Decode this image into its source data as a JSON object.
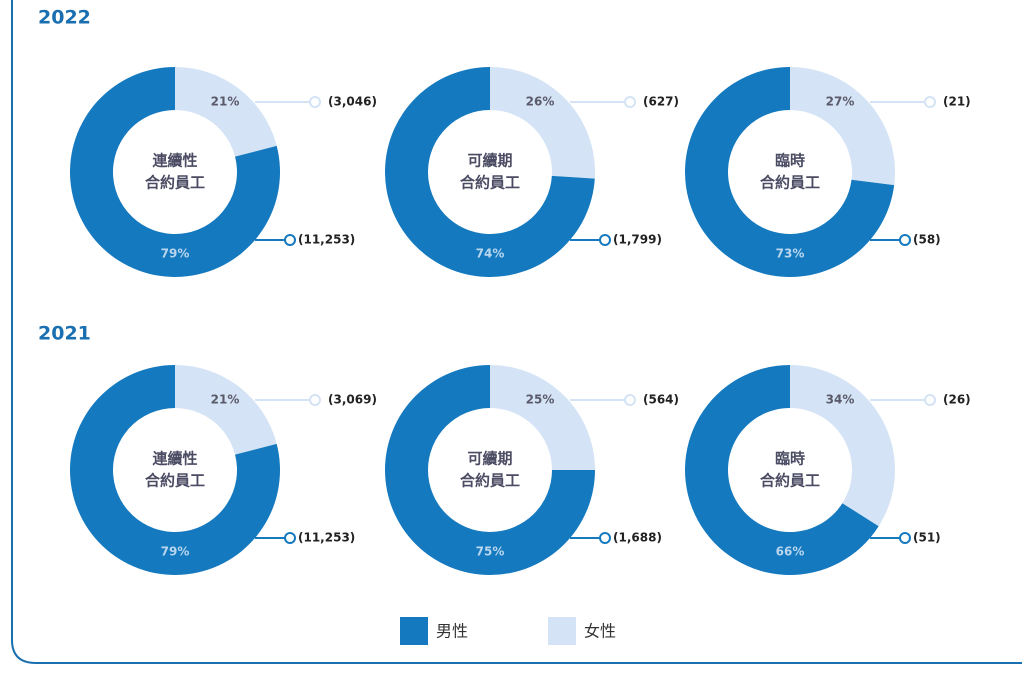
{
  "legend": {
    "categories": [
      "男性",
      "女性"
    ],
    "colors": [
      "#1479be",
      "#d4e3f5"
    ]
  },
  "chart_data": [
    {
      "type": "donut",
      "title": "2022",
      "pies": [
        {
          "label": [
            "連續性",
            "合約員工"
          ],
          "values": [
            79,
            21
          ],
          "value_labels": [
            "79%",
            "21%"
          ],
          "counts": [
            11253,
            3046
          ],
          "count_labels": [
            "(11,253)",
            "(3,046)"
          ]
        },
        {
          "label": [
            "可續期",
            "合約員工"
          ],
          "values": [
            74,
            26
          ],
          "value_labels": [
            "74%",
            "26%"
          ],
          "counts": [
            1799,
            627
          ],
          "count_labels": [
            "(1,799)",
            "(627)"
          ]
        },
        {
          "label": [
            "臨時",
            "合約員工"
          ],
          "values": [
            73,
            27
          ],
          "value_labels": [
            "73%",
            "27%"
          ],
          "counts": [
            58,
            21
          ],
          "count_labels": [
            "(58)",
            "(21)"
          ]
        }
      ]
    },
    {
      "type": "donut",
      "title": "2021",
      "pies": [
        {
          "label": [
            "連續性",
            "合約員工"
          ],
          "values": [
            79,
            21
          ],
          "value_labels": [
            "79%",
            "21%"
          ],
          "counts": [
            11253,
            3069
          ],
          "count_labels": [
            "(11,253)",
            "(3,069)"
          ]
        },
        {
          "label": [
            "可續期",
            "合約員工"
          ],
          "values": [
            75,
            25
          ],
          "value_labels": [
            "75%",
            "25%"
          ],
          "counts": [
            1688,
            564
          ],
          "count_labels": [
            "(1,688)",
            "(564)"
          ]
        },
        {
          "label": [
            "臨時",
            "合約員工"
          ],
          "values": [
            66,
            34
          ],
          "value_labels": [
            "66%",
            "34%"
          ],
          "counts": [
            51,
            26
          ],
          "count_labels": [
            "(51)",
            "(26)"
          ]
        }
      ]
    }
  ]
}
